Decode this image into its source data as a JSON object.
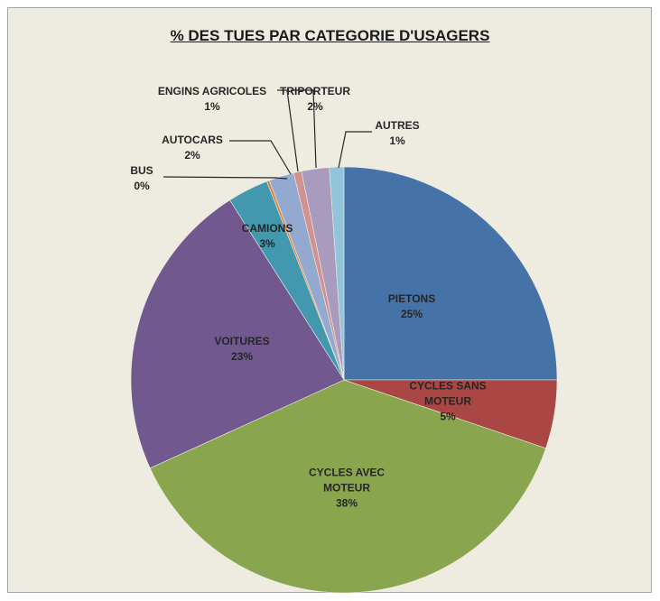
{
  "chart_data": {
    "type": "pie",
    "title": "% DES TUES PAR CATEGORIE D'USAGERS",
    "categories": [
      "PIETONS",
      "CYCLES SANS MOTEUR",
      "CYCLES AVEC MOTEUR",
      "VOITURES",
      "CAMIONS",
      "BUS",
      "AUTOCARS",
      "ENGINS AGRICOLES",
      "TRIPORTEUR",
      "AUTRES"
    ],
    "values": [
      25.0,
      5.2,
      38.0,
      22.8,
      3.1,
      0.2,
      1.9,
      0.6,
      2.1,
      1.1
    ],
    "value_labels": [
      "25%",
      "5%",
      "38%",
      "23%",
      "3%",
      "0%",
      "2%",
      "1%",
      "2%",
      "1%"
    ],
    "colors": [
      "#4572a7",
      "#aa4643",
      "#89a54e",
      "#71588f",
      "#4198af",
      "#db843d",
      "#93a9cf",
      "#d19392",
      "#a99bbd",
      "#92c5d9"
    ]
  }
}
